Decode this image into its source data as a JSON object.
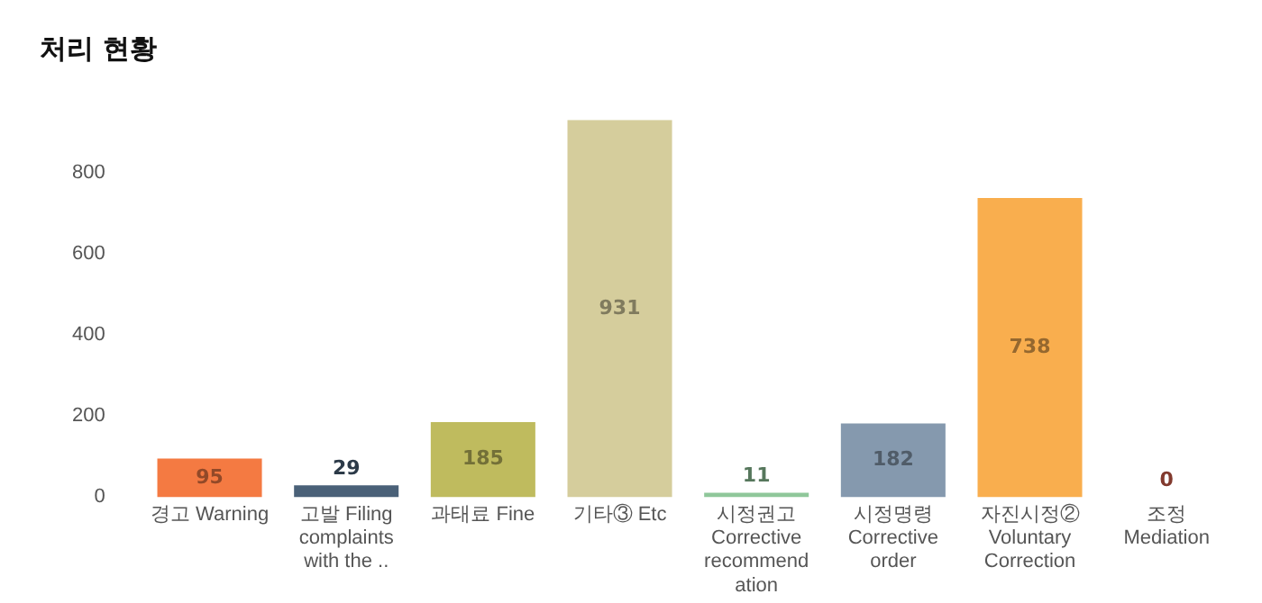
{
  "chart_data": {
    "type": "bar",
    "title": "처리 현황",
    "categories": [
      "경고 Warning",
      "고발 Filing complaints with the ..",
      "과태료 Fine",
      "기타③ Etc",
      "시정권고 Corrective recommendation",
      "시정명령 Corrective order",
      "자진시정② Voluntary Correction",
      "조정 Mediation"
    ],
    "values": [
      95,
      29,
      185,
      931,
      11,
      182,
      738,
      0
    ],
    "colors": [
      "#f47a42",
      "#4a6178",
      "#bfbb5e",
      "#d5cd9c",
      "#8fc79a",
      "#8599ae",
      "#f9ae4e",
      "#d9604c"
    ],
    "ylim": [
      0,
      931
    ],
    "yticks": [
      0,
      200,
      400,
      600,
      800
    ],
    "grid": false,
    "legend": false,
    "data_labels": true
  }
}
